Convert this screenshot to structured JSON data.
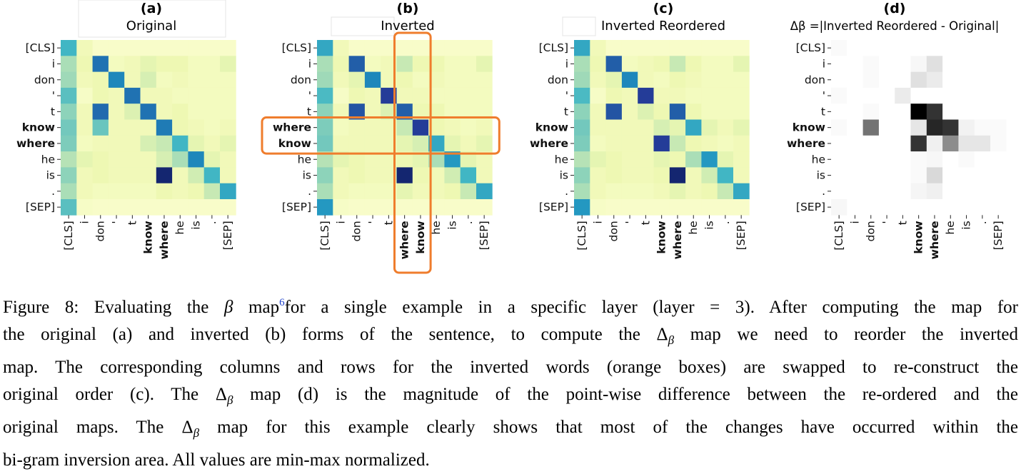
{
  "figure": {
    "panels": [
      {
        "letter": "(a)",
        "title": "Original"
      },
      {
        "letter": "(b)",
        "title": "Inverted"
      },
      {
        "letter": "(c)",
        "title": "Inverted Reordered"
      },
      {
        "letter": "(d)",
        "title": "Δβ =|Inverted Reordered - Original|"
      }
    ],
    "token_colors": {
      "know": "#1e8a17",
      "where": "#141494",
      "default": "#111111"
    },
    "palette": {
      "ylgnbu": [
        "#ffffd9",
        "#edf8b1",
        "#c7e9b4",
        "#7fcdbb",
        "#41b6c4",
        "#1d91c0",
        "#225ea8",
        "#253494",
        "#081d58"
      ],
      "greys": [
        "#ffffff",
        "#000000"
      ],
      "highlight": "#ef7d2d"
    }
  },
  "chart_data": [
    {
      "type": "heatmap",
      "title": "Original",
      "x": [
        "[CLS]",
        "i",
        "don",
        "'",
        "t",
        "know",
        "where",
        "he",
        "is",
        ".",
        "[SEP]"
      ],
      "y": [
        "[CLS]",
        "i",
        "don",
        "'",
        "t",
        "know",
        "where",
        "he",
        "is",
        ".",
        "[SEP]"
      ],
      "colormap": "YlGnBu",
      "values": [
        [
          0.5,
          0.1,
          0.05,
          0.05,
          0.05,
          0.05,
          0.05,
          0.05,
          0.05,
          0.05,
          0.05
        ],
        [
          0.3,
          0.12,
          0.7,
          0.08,
          0.1,
          0.15,
          0.12,
          0.12,
          0.08,
          0.08,
          0.15
        ],
        [
          0.32,
          0.1,
          0.12,
          0.65,
          0.1,
          0.2,
          0.08,
          0.1,
          0.08,
          0.08,
          0.08
        ],
        [
          0.45,
          0.06,
          0.12,
          0.1,
          0.7,
          0.1,
          0.1,
          0.08,
          0.08,
          0.08,
          0.08
        ],
        [
          0.35,
          0.1,
          0.72,
          0.1,
          0.18,
          0.7,
          0.1,
          0.12,
          0.08,
          0.08,
          0.08
        ],
        [
          0.4,
          0.1,
          0.42,
          0.1,
          0.1,
          0.1,
          0.68,
          0.12,
          0.1,
          0.08,
          0.1
        ],
        [
          0.38,
          0.08,
          0.1,
          0.1,
          0.1,
          0.2,
          0.25,
          0.5,
          0.15,
          0.1,
          0.15
        ],
        [
          0.28,
          0.15,
          0.12,
          0.1,
          0.1,
          0.1,
          0.2,
          0.3,
          0.65,
          0.15,
          0.1
        ],
        [
          0.35,
          0.1,
          0.12,
          0.1,
          0.1,
          0.1,
          0.95,
          0.1,
          0.22,
          0.5,
          0.1
        ],
        [
          0.3,
          0.1,
          0.08,
          0.08,
          0.08,
          0.08,
          0.12,
          0.1,
          0.12,
          0.25,
          0.55
        ],
        [
          0.45,
          0.06,
          0.05,
          0.05,
          0.05,
          0.05,
          0.05,
          0.05,
          0.05,
          0.05,
          0.05
        ]
      ]
    },
    {
      "type": "heatmap",
      "title": "Inverted",
      "x": [
        "[CLS]",
        "i",
        "don",
        "'",
        "t",
        "where",
        "know",
        "he",
        "is",
        ".",
        "[SEP]"
      ],
      "y": [
        "[CLS]",
        "i",
        "don",
        "'",
        "t",
        "where",
        "know",
        "he",
        "is",
        ".",
        "[SEP]"
      ],
      "colormap": "YlGnBu",
      "values": [
        [
          0.55,
          0.1,
          0.05,
          0.05,
          0.05,
          0.05,
          0.05,
          0.05,
          0.05,
          0.05,
          0.05
        ],
        [
          0.3,
          0.12,
          0.75,
          0.08,
          0.1,
          0.25,
          0.12,
          0.12,
          0.08,
          0.08,
          0.15
        ],
        [
          0.32,
          0.1,
          0.15,
          0.65,
          0.1,
          0.12,
          0.08,
          0.1,
          0.08,
          0.08,
          0.08
        ],
        [
          0.48,
          0.06,
          0.12,
          0.1,
          0.85,
          0.1,
          0.1,
          0.08,
          0.08,
          0.08,
          0.08
        ],
        [
          0.35,
          0.1,
          0.78,
          0.1,
          0.18,
          0.75,
          0.12,
          0.12,
          0.08,
          0.08,
          0.08
        ],
        [
          0.38,
          0.08,
          0.1,
          0.1,
          0.1,
          0.25,
          0.85,
          0.12,
          0.1,
          0.08,
          0.1
        ],
        [
          0.4,
          0.1,
          0.1,
          0.1,
          0.1,
          0.15,
          0.2,
          0.55,
          0.15,
          0.1,
          0.15
        ],
        [
          0.28,
          0.15,
          0.12,
          0.1,
          0.1,
          0.12,
          0.15,
          0.3,
          0.6,
          0.15,
          0.1
        ],
        [
          0.35,
          0.1,
          0.12,
          0.1,
          0.1,
          0.95,
          0.12,
          0.1,
          0.22,
          0.5,
          0.1
        ],
        [
          0.3,
          0.1,
          0.08,
          0.08,
          0.08,
          0.15,
          0.1,
          0.1,
          0.12,
          0.25,
          0.55
        ],
        [
          0.6,
          0.06,
          0.05,
          0.05,
          0.05,
          0.05,
          0.05,
          0.05,
          0.05,
          0.05,
          0.05
        ]
      ],
      "highlight": {
        "rows": [
          "where",
          "know"
        ],
        "columns": [
          "where",
          "know"
        ]
      }
    },
    {
      "type": "heatmap",
      "title": "Inverted Reordered",
      "x": [
        "[CLS]",
        "i",
        "don",
        "'",
        "t",
        "know",
        "where",
        "he",
        "is",
        ".",
        "[SEP]"
      ],
      "y": [
        "[CLS]",
        "i",
        "don",
        "'",
        "t",
        "know",
        "where",
        "he",
        "is",
        ".",
        "[SEP]"
      ],
      "colormap": "YlGnBu",
      "values": [
        [
          0.55,
          0.1,
          0.05,
          0.05,
          0.05,
          0.05,
          0.05,
          0.05,
          0.05,
          0.05,
          0.05
        ],
        [
          0.3,
          0.12,
          0.75,
          0.08,
          0.1,
          0.12,
          0.25,
          0.12,
          0.08,
          0.08,
          0.15
        ],
        [
          0.32,
          0.1,
          0.15,
          0.65,
          0.1,
          0.08,
          0.12,
          0.1,
          0.08,
          0.08,
          0.08
        ],
        [
          0.48,
          0.06,
          0.12,
          0.1,
          0.85,
          0.1,
          0.1,
          0.08,
          0.08,
          0.08,
          0.08
        ],
        [
          0.35,
          0.1,
          0.78,
          0.1,
          0.18,
          0.12,
          0.75,
          0.12,
          0.08,
          0.08,
          0.08
        ],
        [
          0.4,
          0.1,
          0.1,
          0.1,
          0.1,
          0.2,
          0.15,
          0.55,
          0.15,
          0.1,
          0.15
        ],
        [
          0.38,
          0.08,
          0.1,
          0.1,
          0.1,
          0.85,
          0.25,
          0.12,
          0.1,
          0.08,
          0.1
        ],
        [
          0.28,
          0.15,
          0.12,
          0.1,
          0.1,
          0.15,
          0.12,
          0.3,
          0.6,
          0.15,
          0.1
        ],
        [
          0.35,
          0.1,
          0.12,
          0.1,
          0.1,
          0.12,
          0.95,
          0.1,
          0.22,
          0.5,
          0.1
        ],
        [
          0.3,
          0.1,
          0.08,
          0.08,
          0.08,
          0.1,
          0.15,
          0.1,
          0.12,
          0.25,
          0.55
        ],
        [
          0.6,
          0.06,
          0.05,
          0.05,
          0.05,
          0.05,
          0.05,
          0.05,
          0.05,
          0.05,
          0.05
        ]
      ]
    },
    {
      "type": "heatmap",
      "title": "Δβ =|Inverted Reordered - Original|",
      "x": [
        "[CLS]",
        "i",
        "don",
        "'",
        "t",
        "know",
        "where",
        "he",
        "is",
        ".",
        "[SEP]"
      ],
      "y": [
        "[CLS]",
        "i",
        "don",
        "'",
        "t",
        "know",
        "where",
        "he",
        "is",
        ".",
        "[SEP]"
      ],
      "colormap": "Greys",
      "values": [
        [
          0.02,
          0.0,
          0.0,
          0.0,
          0.0,
          0.0,
          0.0,
          0.0,
          0.0,
          0.0,
          0.0
        ],
        [
          0.0,
          0.0,
          0.02,
          0.0,
          0.0,
          0.03,
          0.12,
          0.0,
          0.0,
          0.0,
          0.0
        ],
        [
          0.0,
          0.0,
          0.02,
          0.0,
          0.0,
          0.12,
          0.08,
          0.0,
          0.0,
          0.0,
          0.0
        ],
        [
          0.02,
          0.0,
          0.0,
          0.0,
          0.08,
          0.0,
          0.0,
          0.0,
          0.0,
          0.0,
          0.0
        ],
        [
          0.0,
          0.0,
          0.02,
          0.0,
          0.0,
          1.0,
          0.8,
          0.0,
          0.0,
          0.0,
          0.0
        ],
        [
          0.02,
          0.0,
          0.55,
          0.0,
          0.0,
          0.1,
          0.85,
          0.8,
          0.05,
          0.02,
          0.02
        ],
        [
          0.0,
          0.0,
          0.0,
          0.0,
          0.0,
          0.8,
          0.06,
          0.45,
          0.1,
          0.1,
          0.02
        ],
        [
          0.0,
          0.0,
          0.0,
          0.0,
          0.0,
          0.02,
          0.03,
          0.0,
          0.02,
          0.0,
          0.0
        ],
        [
          0.0,
          0.0,
          0.0,
          0.0,
          0.0,
          0.02,
          0.15,
          0.0,
          0.0,
          0.0,
          0.0
        ],
        [
          0.0,
          0.0,
          0.0,
          0.0,
          0.0,
          0.04,
          0.06,
          0.0,
          0.0,
          0.0,
          0.0
        ],
        [
          0.03,
          0.0,
          0.0,
          0.0,
          0.0,
          0.0,
          0.0,
          0.0,
          0.0,
          0.0,
          0.0
        ]
      ]
    }
  ],
  "caption": {
    "line1_a": "Figure 8: Evaluating the ",
    "beta": "β",
    "line1_b": " map",
    "footnote": "6",
    "line1_c": "for a single example in a specific layer (layer = 3). After computing the map for",
    "line2_a": "the original (a) and inverted (b) forms of the sentence, to compute the ",
    "delta": "Δ",
    "line2_b": " map we need to reorder the inverted",
    "line3": "map. The corresponding columns and rows for the inverted words (orange boxes) are swapped to re-construct the",
    "line4_a": "original order (c). The ",
    "line4_b": " map (d) is the magnitude of the point-wise difference between the re-ordered and the",
    "line5_a": "original maps. The ",
    "line5_b": " map for this example clearly shows that most of the changes have occurred within the",
    "line6": "bi-gram inversion area. All values are min-max normalized."
  }
}
